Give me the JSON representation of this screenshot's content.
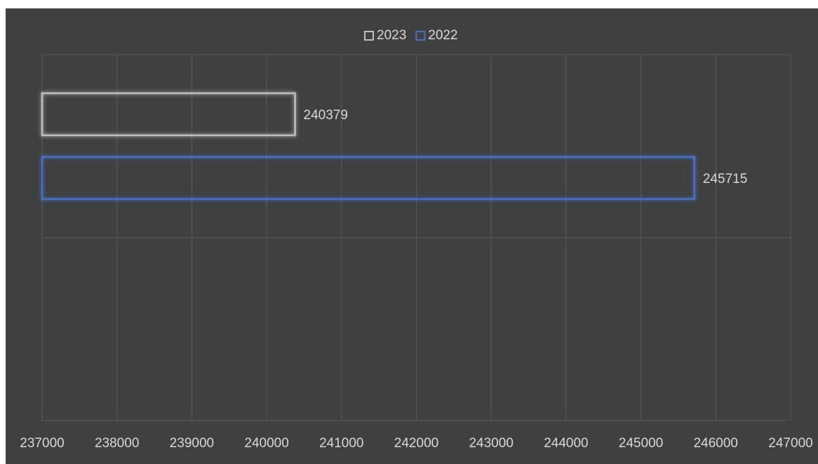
{
  "chart_data": {
    "type": "bar",
    "orientation": "horizontal",
    "categories": [
      null,
      null
    ],
    "series": [
      {
        "name": "2023",
        "color": "#bfbfbf",
        "values": [
          240379,
          null
        ]
      },
      {
        "name": "2022",
        "color": "#4472c4",
        "values": [
          245715,
          null
        ]
      }
    ],
    "xlim": [
      237000,
      247000
    ],
    "xticks": [
      237000,
      238000,
      239000,
      240000,
      241000,
      242000,
      243000,
      244000,
      245000,
      246000,
      247000
    ],
    "grid": true,
    "legend": "top"
  }
}
